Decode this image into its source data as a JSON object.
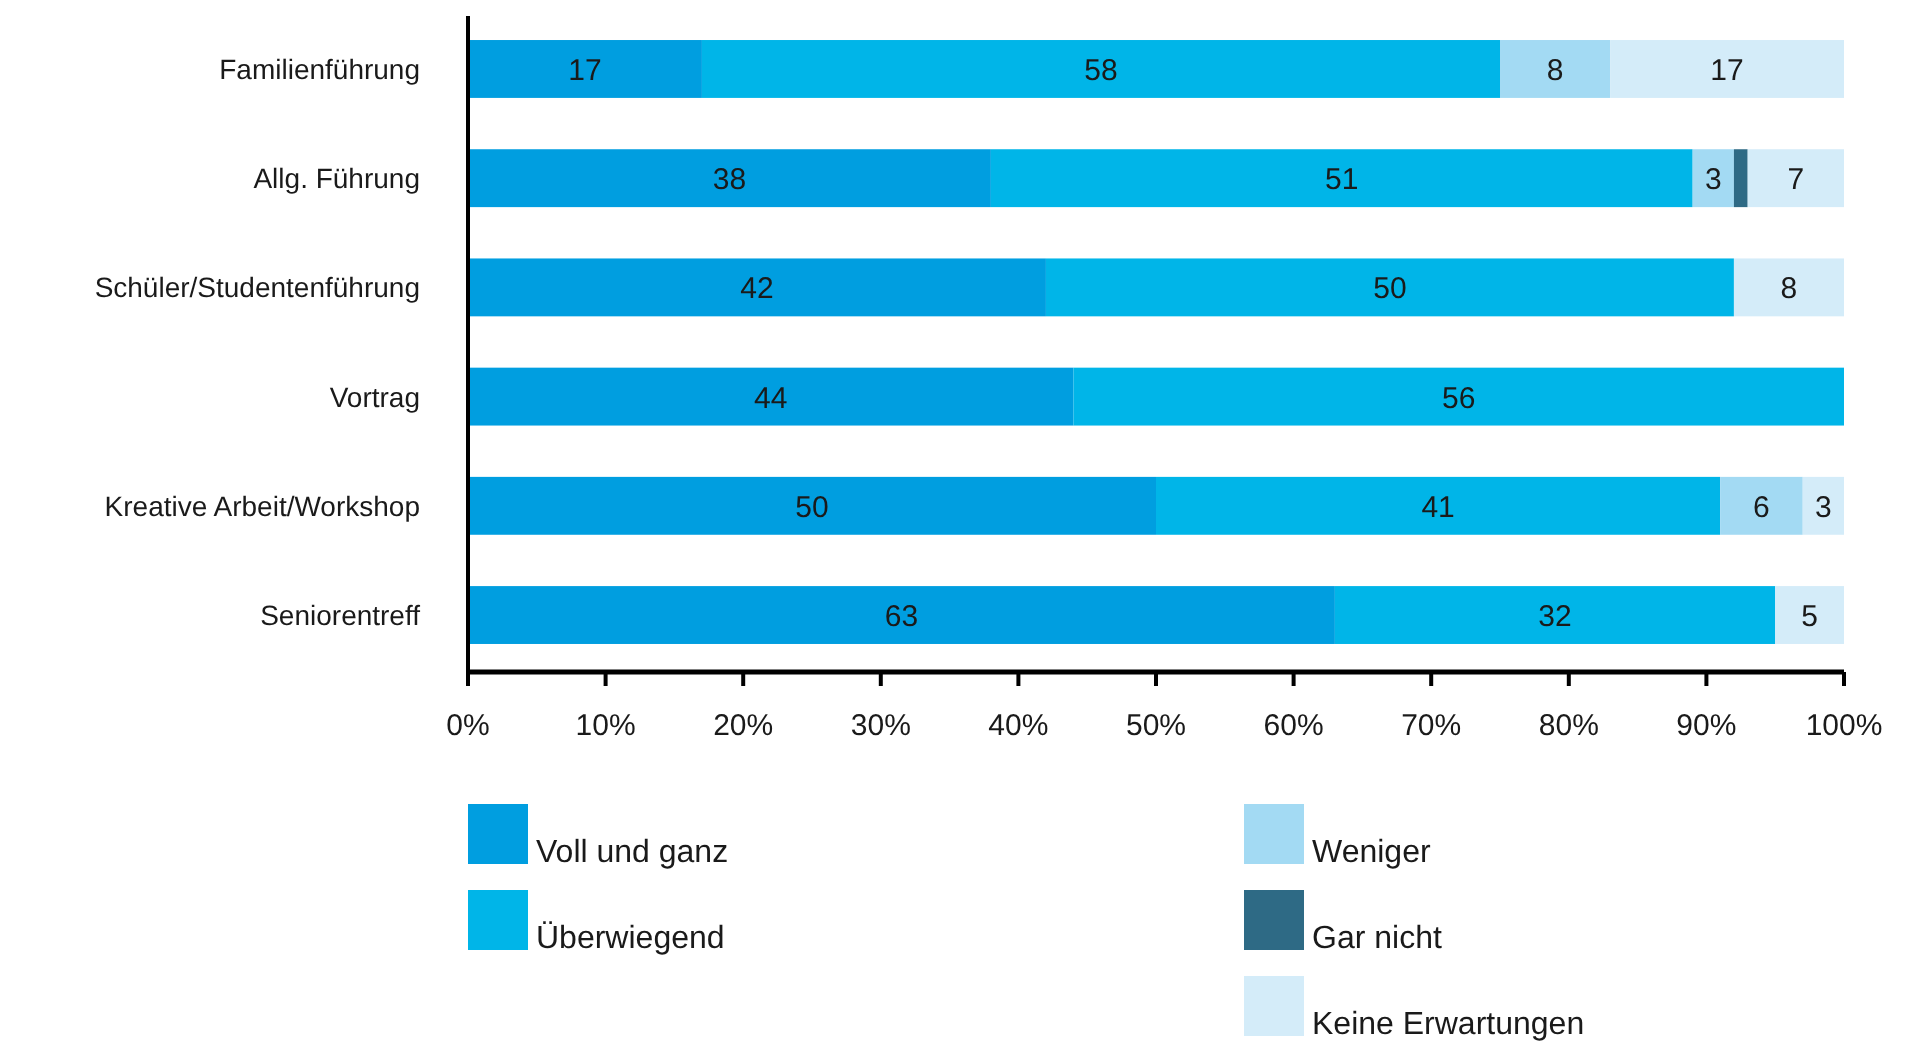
{
  "chart_data": {
    "type": "bar",
    "orientation": "horizontal",
    "stacked": true,
    "categories": [
      "Familienführung",
      "Allg. Führung",
      "Schüler/Studentenführung",
      "Vortrag",
      "Kreative Arbeit/Workshop",
      "Seniorentreff"
    ],
    "series": [
      {
        "name": "Voll und ganz",
        "color": "#009ee0",
        "values": [
          17,
          38,
          42,
          44,
          50,
          63
        ],
        "value_labels": [
          "17",
          "38",
          "42",
          "44",
          "50",
          "63"
        ]
      },
      {
        "name": "Überwiegend",
        "color": "#00b5e8",
        "values": [
          58,
          51,
          50,
          56,
          41,
          32
        ],
        "value_labels": [
          "58",
          "51",
          "50",
          "56",
          "41",
          "32"
        ]
      },
      {
        "name": "Weniger",
        "color": "#a3daf3",
        "values": [
          8,
          3,
          null,
          null,
          6,
          null
        ],
        "value_labels": [
          "8",
          "3",
          null,
          null,
          "6",
          null
        ]
      },
      {
        "name": "Gar nicht",
        "color": "#2e6a85",
        "values": [
          null,
          1,
          null,
          null,
          null,
          null
        ],
        "value_labels": [
          null,
          null,
          null,
          null,
          null,
          null
        ]
      },
      {
        "name": "Keine Erwartungen",
        "color": "#d4ecf9",
        "values": [
          17,
          7,
          8,
          null,
          3,
          5
        ],
        "value_labels": [
          "17",
          "7",
          "8",
          null,
          "3",
          "5"
        ]
      }
    ],
    "xlim": [
      0,
      100
    ],
    "xticks": [
      {
        "value": 0,
        "label": "0%"
      },
      {
        "value": 10,
        "label": "10%"
      },
      {
        "value": 20,
        "label": "20%"
      },
      {
        "value": 30,
        "label": "30%"
      },
      {
        "value": 40,
        "label": "40%"
      },
      {
        "value": 50,
        "label": "50%"
      },
      {
        "value": 60,
        "label": "60%"
      },
      {
        "value": 70,
        "label": "70%"
      },
      {
        "value": 80,
        "label": "80%"
      },
      {
        "value": 90,
        "label": "90%"
      },
      {
        "value": 100,
        "label": "100%"
      }
    ],
    "grid": false,
    "legend": "bottom"
  }
}
